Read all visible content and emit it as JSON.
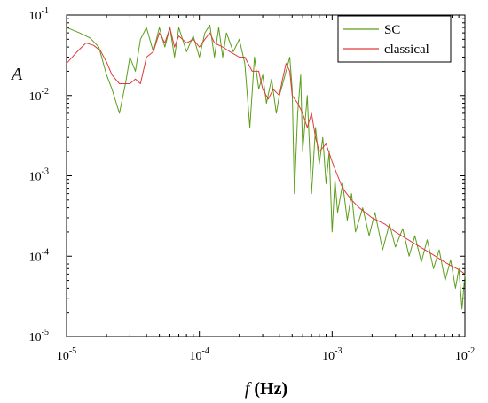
{
  "chart_data": {
    "type": "line",
    "x_scale": "log",
    "y_scale": "log",
    "xlim": [
      1e-05,
      0.01
    ],
    "ylim": [
      1e-05,
      0.1
    ],
    "x_ticks": [
      {
        "value": 1e-05,
        "base": "10",
        "exp": "-5"
      },
      {
        "value": 0.0001,
        "base": "10",
        "exp": "-4"
      },
      {
        "value": 0.001,
        "base": "10",
        "exp": "-3"
      },
      {
        "value": 0.01,
        "base": "10",
        "exp": "-2"
      }
    ],
    "y_ticks": [
      {
        "value": 1e-05,
        "base": "10",
        "exp": "-5"
      },
      {
        "value": 0.0001,
        "base": "10",
        "exp": "-4"
      },
      {
        "value": 0.001,
        "base": "10",
        "exp": "-3"
      },
      {
        "value": 0.01,
        "base": "10",
        "exp": "-2"
      },
      {
        "value": 0.1,
        "base": "10",
        "exp": "-1"
      }
    ],
    "xlabel": {
      "var": "f",
      "unit": " (Hz)"
    },
    "ylabel": "A",
    "grid": false,
    "legend_position": "top-right",
    "series": [
      {
        "name": "SC",
        "color": "#5a9e1a",
        "points": [
          [
            1e-05,
            0.07
          ],
          [
            1.25e-05,
            0.06
          ],
          [
            1.5e-05,
            0.052
          ],
          [
            1.75e-05,
            0.04
          ],
          [
            2e-05,
            0.018
          ],
          [
            2.2e-05,
            0.012
          ],
          [
            2.5e-05,
            0.006
          ],
          [
            2.8e-05,
            0.015
          ],
          [
            3e-05,
            0.03
          ],
          [
            3.3e-05,
            0.02
          ],
          [
            3.6e-05,
            0.05
          ],
          [
            4e-05,
            0.07
          ],
          [
            4.5e-05,
            0.035
          ],
          [
            5e-05,
            0.07
          ],
          [
            5.5e-05,
            0.04
          ],
          [
            6e-05,
            0.07
          ],
          [
            6.5e-05,
            0.03
          ],
          [
            7e-05,
            0.07
          ],
          [
            8e-05,
            0.035
          ],
          [
            9e-05,
            0.055
          ],
          [
            0.0001,
            0.03
          ],
          [
            0.00011,
            0.06
          ],
          [
            0.00012,
            0.075
          ],
          [
            0.00013,
            0.03
          ],
          [
            0.00014,
            0.07
          ],
          [
            0.00015,
            0.03
          ],
          [
            0.00016,
            0.06
          ],
          [
            0.00018,
            0.035
          ],
          [
            0.0002,
            0.05
          ],
          [
            0.00022,
            0.025
          ],
          [
            0.00024,
            0.004
          ],
          [
            0.00026,
            0.03
          ],
          [
            0.00028,
            0.012
          ],
          [
            0.0003,
            0.018
          ],
          [
            0.00032,
            0.008
          ],
          [
            0.00035,
            0.016
          ],
          [
            0.00038,
            0.006
          ],
          [
            0.0004,
            0.01
          ],
          [
            0.00042,
            0.013
          ],
          [
            0.00045,
            0.02
          ],
          [
            0.00048,
            0.03
          ],
          [
            0.0005,
            0.012
          ],
          [
            0.00052,
            0.0006
          ],
          [
            0.00055,
            0.006
          ],
          [
            0.00058,
            0.018
          ],
          [
            0.0006,
            0.002
          ],
          [
            0.00065,
            0.01
          ],
          [
            0.0007,
            0.0006
          ],
          [
            0.00075,
            0.004
          ],
          [
            0.0008,
            0.0014
          ],
          [
            0.00085,
            0.003
          ],
          [
            0.0009,
            0.0008
          ],
          [
            0.00095,
            0.002
          ],
          [
            0.001,
            0.0002
          ],
          [
            0.00105,
            0.0009
          ],
          [
            0.0011,
            0.00035
          ],
          [
            0.0012,
            0.0008
          ],
          [
            0.0013,
            0.00028
          ],
          [
            0.0014,
            0.0006
          ],
          [
            0.0015,
            0.0002
          ],
          [
            0.0017,
            0.0004
          ],
          [
            0.0019,
            0.00018
          ],
          [
            0.0021,
            0.00035
          ],
          [
            0.0024,
            0.00012
          ],
          [
            0.0027,
            0.00025
          ],
          [
            0.003,
            0.00013
          ],
          [
            0.0034,
            0.00022
          ],
          [
            0.0038,
            0.0001
          ],
          [
            0.0042,
            0.00018
          ],
          [
            0.0047,
            8.5e-05
          ],
          [
            0.0052,
            0.00016
          ],
          [
            0.0058,
            7e-05
          ],
          [
            0.0064,
            0.00012
          ],
          [
            0.0071,
            5e-05
          ],
          [
            0.0078,
            9e-05
          ],
          [
            0.0085,
            4e-05
          ],
          [
            0.009,
            7e-05
          ],
          [
            0.0095,
            2.2e-05
          ],
          [
            0.01,
            6e-05
          ]
        ]
      },
      {
        "name": "classical",
        "color": "#e03a3a",
        "points": [
          [
            1e-05,
            0.025
          ],
          [
            1.2e-05,
            0.035
          ],
          [
            1.4e-05,
            0.045
          ],
          [
            1.6e-05,
            0.042
          ],
          [
            1.8e-05,
            0.036
          ],
          [
            2e-05,
            0.026
          ],
          [
            2.2e-05,
            0.018
          ],
          [
            2.5e-05,
            0.014
          ],
          [
            3e-05,
            0.014
          ],
          [
            3.3e-05,
            0.016
          ],
          [
            3.6e-05,
            0.014
          ],
          [
            4e-05,
            0.03
          ],
          [
            4.5e-05,
            0.035
          ],
          [
            5e-05,
            0.06
          ],
          [
            5.5e-05,
            0.045
          ],
          [
            6e-05,
            0.07
          ],
          [
            6.5e-05,
            0.04
          ],
          [
            7e-05,
            0.055
          ],
          [
            8e-05,
            0.045
          ],
          [
            9e-05,
            0.05
          ],
          [
            0.0001,
            0.04
          ],
          [
            0.00011,
            0.05
          ],
          [
            0.00012,
            0.06
          ],
          [
            0.00013,
            0.045
          ],
          [
            0.00015,
            0.04
          ],
          [
            0.00017,
            0.035
          ],
          [
            0.0002,
            0.03
          ],
          [
            0.00022,
            0.03
          ],
          [
            0.00025,
            0.02
          ],
          [
            0.00028,
            0.02
          ],
          [
            0.0003,
            0.012
          ],
          [
            0.00033,
            0.009
          ],
          [
            0.00036,
            0.012
          ],
          [
            0.0004,
            0.01
          ],
          [
            0.00042,
            0.015
          ],
          [
            0.00045,
            0.025
          ],
          [
            0.00048,
            0.02
          ],
          [
            0.0005,
            0.01
          ],
          [
            0.00055,
            0.008
          ],
          [
            0.0006,
            0.006
          ],
          [
            0.00065,
            0.004
          ],
          [
            0.0007,
            0.006
          ],
          [
            0.00075,
            0.003
          ],
          [
            0.0008,
            0.002
          ],
          [
            0.0009,
            0.0025
          ],
          [
            0.001,
            0.0015
          ],
          [
            0.0011,
            0.001
          ],
          [
            0.0012,
            0.0007
          ],
          [
            0.0014,
            0.0005
          ],
          [
            0.0016,
            0.0004
          ],
          [
            0.002,
            0.0003
          ],
          [
            0.0025,
            0.00025
          ],
          [
            0.003,
            0.0002
          ],
          [
            0.004,
            0.00015
          ],
          [
            0.005,
            0.00012
          ],
          [
            0.006,
            0.0001
          ],
          [
            0.007,
            8.5e-05
          ],
          [
            0.008,
            7.5e-05
          ],
          [
            0.009,
            6.8e-05
          ],
          [
            0.01,
            6e-05
          ]
        ]
      }
    ]
  }
}
